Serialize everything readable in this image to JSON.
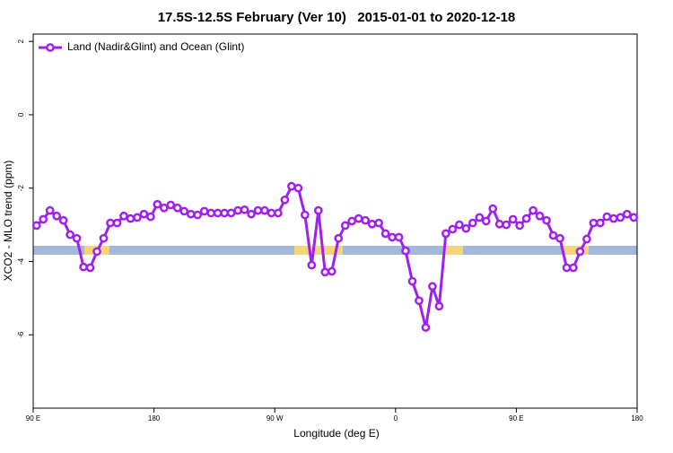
{
  "chart_data": {
    "type": "line",
    "title": "17.5S-12.5S February (Ver 10)   2015-01-01 to 2020-12-18",
    "x_label": "Longitude (deg E)",
    "y_label": "XCO2 - MLO trend (ppm)",
    "legend_position": "top-left",
    "xlim": [
      90,
      540
    ],
    "ylim": [
      -8.0,
      2.2
    ],
    "xticks": [
      {
        "value": 90,
        "label": "90 E"
      },
      180,
      {
        "value": 270,
        "label": "90 W"
      },
      {
        "value": 360,
        "label": "0"
      },
      {
        "value": 450,
        "label": "90 E"
      },
      {
        "value": 540,
        "label": "180"
      }
    ],
    "yticks": [
      2,
      0,
      -2,
      -4,
      -6
    ],
    "x": [
      92.5,
      97.5,
      102.5,
      107.5,
      112.5,
      117.5,
      122.5,
      127.5,
      132.5,
      137.5,
      142.5,
      147.5,
      152.5,
      157.5,
      162.5,
      167.5,
      172.5,
      177.5,
      182.5,
      187.5,
      192.5,
      197.5,
      202.5,
      207.5,
      212.5,
      217.5,
      222.5,
      227.5,
      232.5,
      237.5,
      242.5,
      247.5,
      252.5,
      257.5,
      262.5,
      267.5,
      272.5,
      277.5,
      282.5,
      287.5,
      292.5,
      297.5,
      302.5,
      307.5,
      312.5,
      317.5,
      322.5,
      327.5,
      332.5,
      337.5,
      342.5,
      347.5,
      352.5,
      357.5,
      362.5,
      367.5,
      372.5,
      377.5,
      382.5,
      387.5,
      392.5,
      397.5,
      402.5,
      407.5,
      412.5,
      417.5,
      422.5,
      427.5,
      432.5,
      437.5,
      442.5,
      447.5,
      452.5,
      457.5,
      462.5,
      467.5,
      472.5,
      477.5,
      482.5,
      487.5,
      492.5,
      497.5,
      502.5,
      507.5,
      512.5,
      517.5,
      522.5,
      527.5,
      532.5,
      537.5
    ],
    "series": [
      {
        "name": "Land (Nadir&Glint) and Ocean (Glint)",
        "color": "#a020f0",
        "values": [
          -3.02,
          -2.85,
          -2.61,
          -2.76,
          -2.88,
          -3.27,
          -3.37,
          -4.15,
          -4.17,
          -3.73,
          -3.37,
          -2.95,
          -2.95,
          -2.76,
          -2.83,
          -2.8,
          -2.71,
          -2.78,
          -2.44,
          -2.54,
          -2.46,
          -2.54,
          -2.63,
          -2.71,
          -2.73,
          -2.63,
          -2.68,
          -2.68,
          -2.68,
          -2.68,
          -2.61,
          -2.59,
          -2.71,
          -2.61,
          -2.61,
          -2.68,
          -2.68,
          -2.32,
          -1.95,
          -2.0,
          -2.73,
          -4.1,
          -2.61,
          -4.29,
          -4.27,
          -3.37,
          -3.02,
          -2.9,
          -2.83,
          -2.88,
          -2.98,
          -2.95,
          -3.24,
          -3.34,
          -3.34,
          -3.71,
          -4.54,
          -5.07,
          -5.8,
          -4.68,
          -5.22,
          -3.24,
          -3.12,
          -3.0,
          -3.1,
          -2.95,
          -2.8,
          -2.9,
          -2.56,
          -2.98,
          -3.0,
          -2.85,
          -3.02,
          -2.83,
          -2.61,
          -2.76,
          -2.88,
          -3.29,
          -3.37,
          -4.17,
          -4.17,
          -3.73,
          -3.39,
          -2.95,
          -2.95,
          -2.78,
          -2.83,
          -2.8,
          -2.71,
          -2.8
        ]
      }
    ]
  }
}
